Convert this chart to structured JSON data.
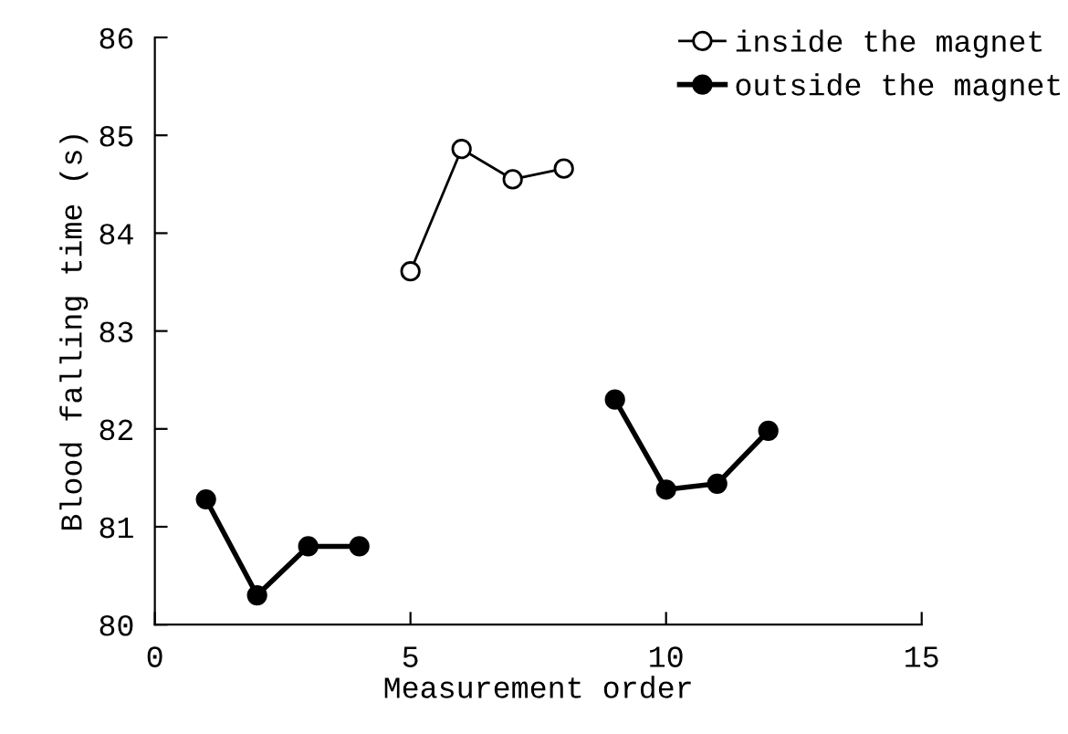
{
  "chart_data": {
    "type": "line",
    "xlabel": "Measurement order",
    "ylabel": "Blood falling time (s)",
    "xlim": [
      0,
      15
    ],
    "xticks": [
      0,
      5,
      10,
      15
    ],
    "ylim": [
      80,
      86
    ],
    "yticks": [
      80,
      81,
      82,
      83,
      84,
      85,
      86
    ],
    "grid": false,
    "legend": "top right",
    "marker": "circle",
    "line_style": "solid",
    "series": [
      {
        "name": "inside the magnet",
        "color": "#000000",
        "x": [
          5,
          6,
          7,
          8
        ],
        "values": [
          83.61,
          84.86,
          84.55,
          84.66
        ]
      },
      {
        "name": "outside the magnet",
        "color": "#000000",
        "x": [
          1,
          2,
          3,
          4,
          null,
          9,
          10,
          11,
          12
        ],
        "values": [
          81.28,
          80.3,
          80.8,
          80.8,
          null,
          82.3,
          81.38,
          81.44,
          81.98
        ]
      }
    ]
  }
}
